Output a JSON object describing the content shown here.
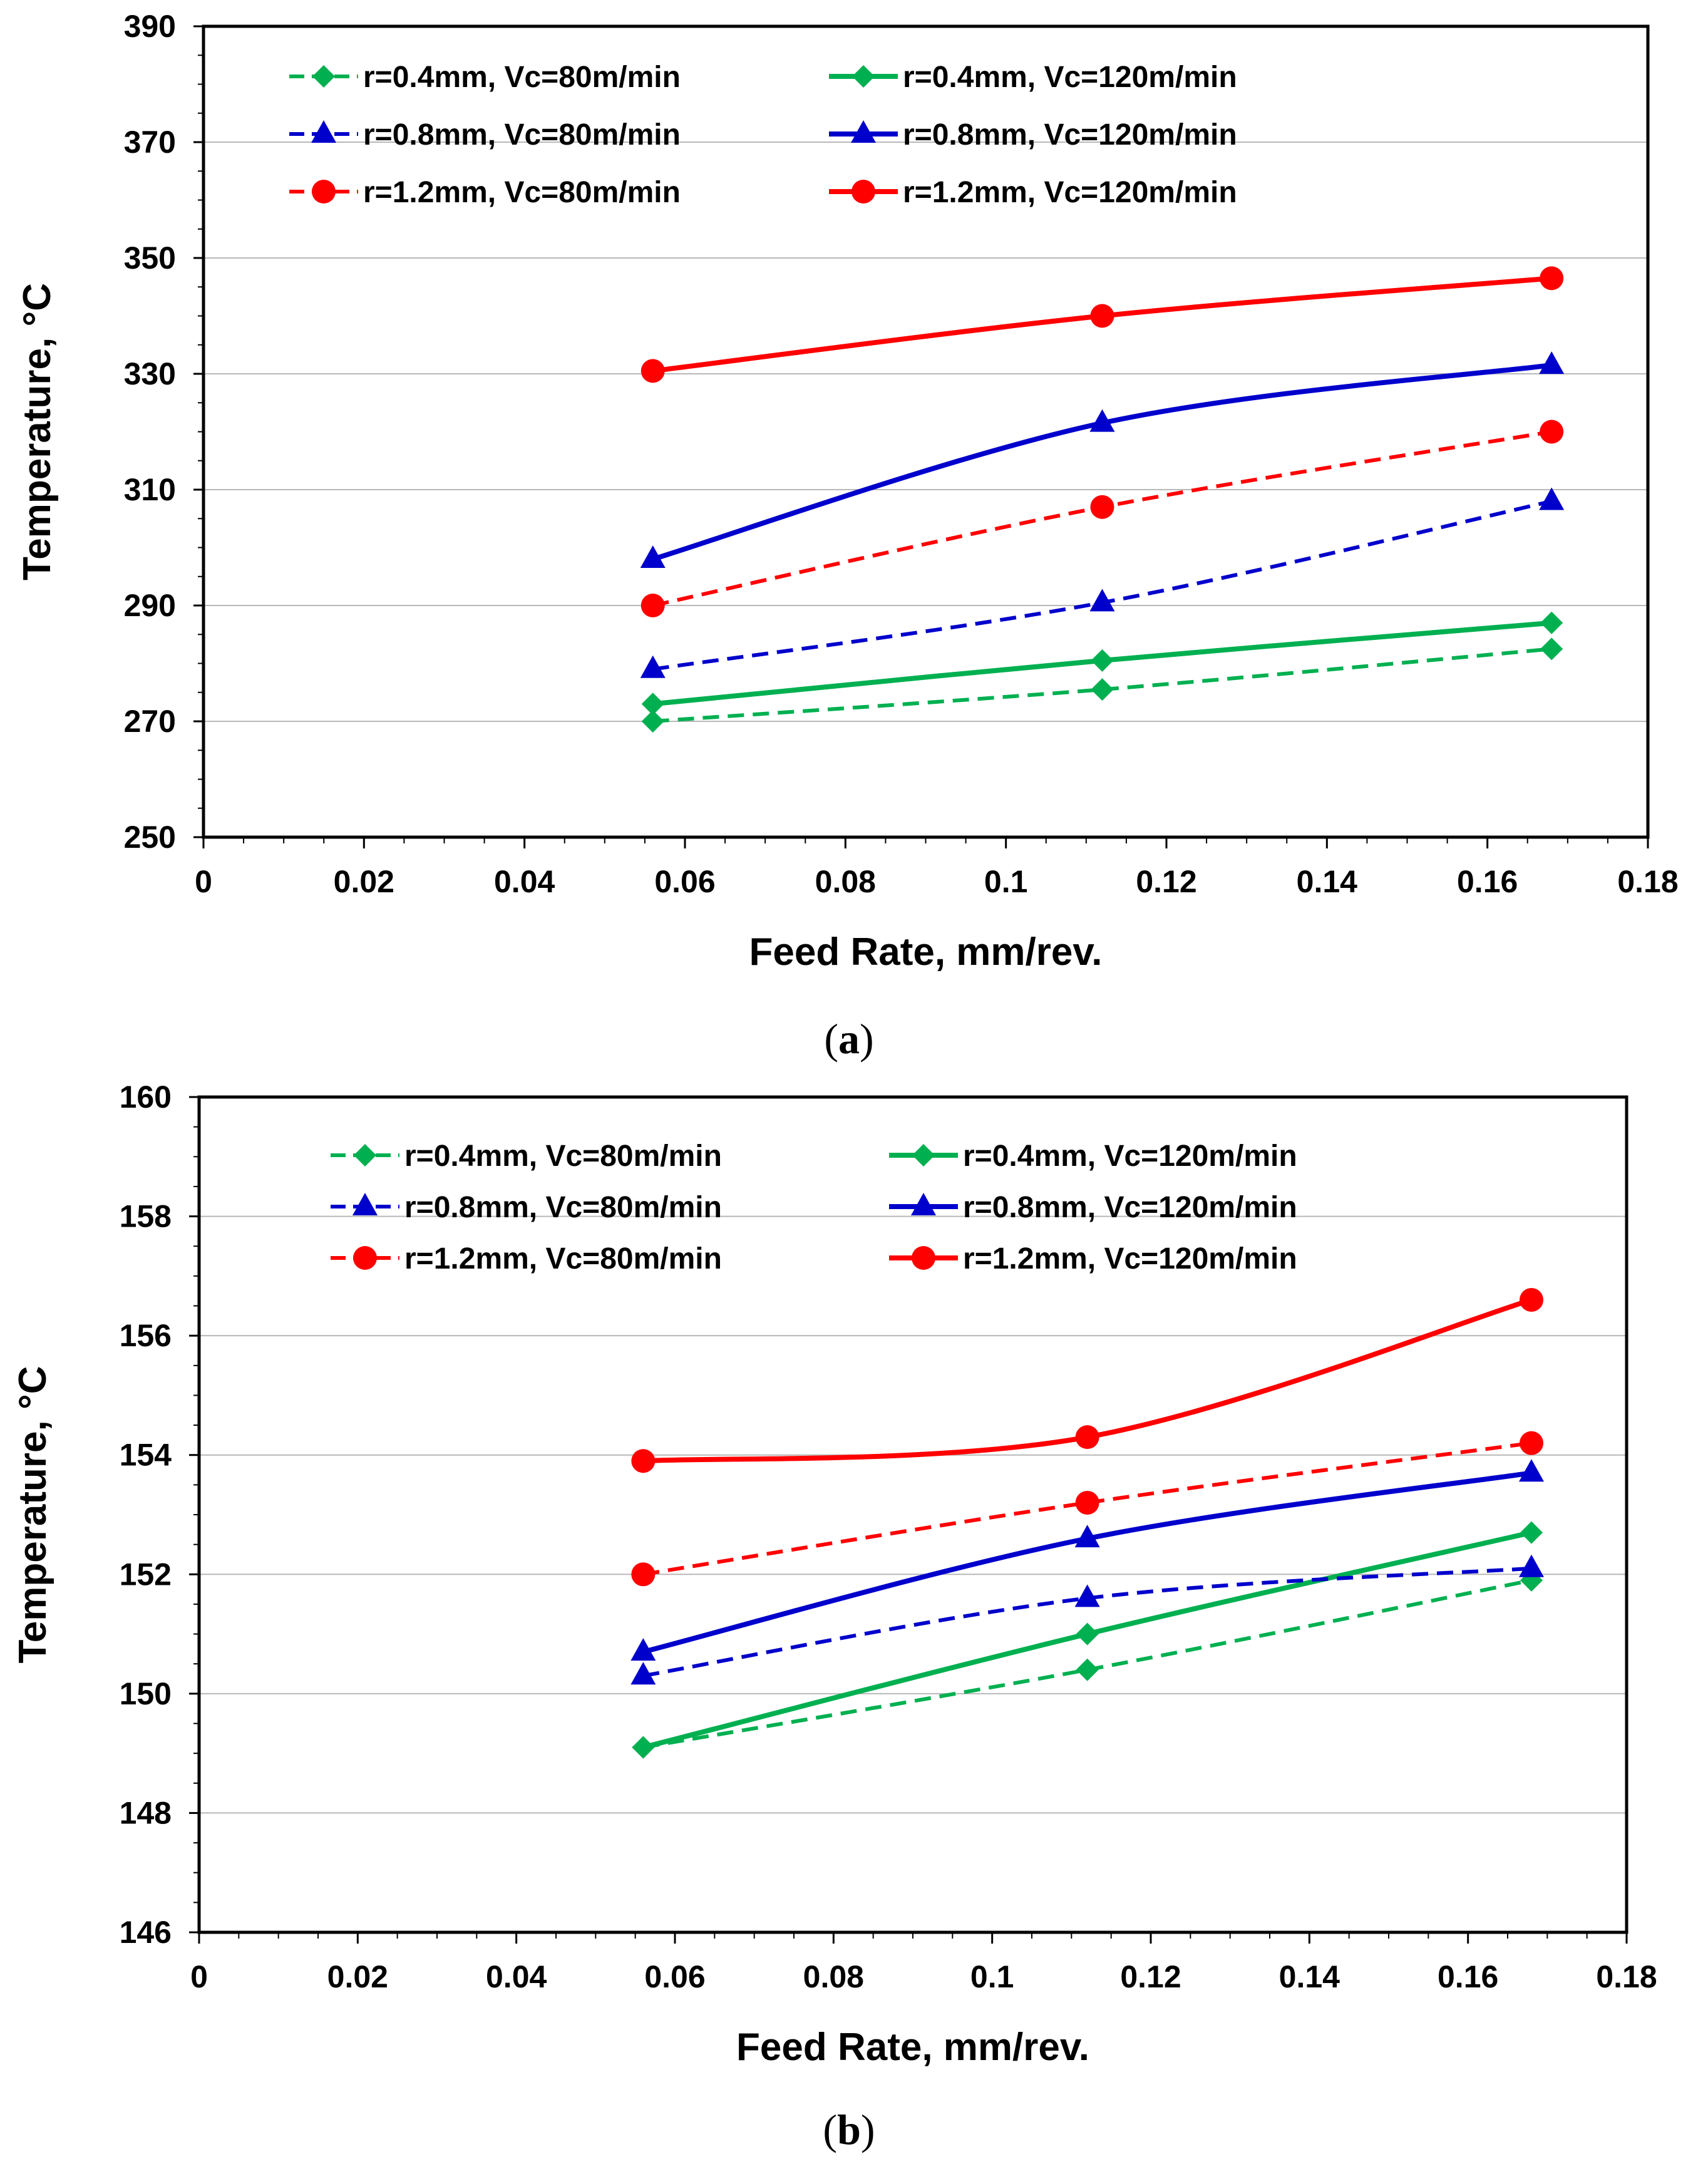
{
  "chart_data": [
    {
      "type": "line",
      "panel_label": "a",
      "xlabel": "Feed Rate, mm/rev.",
      "ylabel": "Temperature, °C",
      "xlim": [
        0,
        0.18
      ],
      "ylim": [
        250,
        390
      ],
      "x_ticks": [
        "0",
        "0.02",
        "0.04",
        "0.06",
        "0.08",
        "0.1",
        "0.12",
        "0.14",
        "0.16",
        "0.18"
      ],
      "y_ticks": [
        "250",
        "270",
        "290",
        "310",
        "330",
        "350",
        "370",
        "390"
      ],
      "x": [
        0.056,
        0.112,
        0.168
      ],
      "grid": "horizontal",
      "legend_position": "top-left",
      "series": [
        {
          "name": "r=0.4mm, Vc=80m/min",
          "values": [
            270,
            275.5,
            282.5
          ],
          "color": "#00b050",
          "marker": "diamond",
          "dashed": true
        },
        {
          "name": "r=0.4mm, Vc=120m/min",
          "values": [
            273,
            280.5,
            287
          ],
          "color": "#00b050",
          "marker": "diamond",
          "dashed": false
        },
        {
          "name": "r=0.8mm, Vc=80m/min",
          "values": [
            279,
            290.5,
            308
          ],
          "color": "#0000cc",
          "marker": "triangle",
          "dashed": true
        },
        {
          "name": "r=0.8mm, Vc=120m/min",
          "values": [
            298,
            321.5,
            331.5
          ],
          "color": "#0000cc",
          "marker": "triangle",
          "dashed": false
        },
        {
          "name": "r=1.2mm, Vc=80m/min",
          "values": [
            290,
            307,
            320
          ],
          "color": "#ff0000",
          "marker": "circle",
          "dashed": true
        },
        {
          "name": "r=1.2mm, Vc=120m/min",
          "values": [
            330.5,
            340,
            346.5
          ],
          "color": "#ff0000",
          "marker": "circle",
          "dashed": false
        }
      ]
    },
    {
      "type": "line",
      "panel_label": "b",
      "xlabel": "Feed Rate, mm/rev.",
      "ylabel": "Temperature, °C",
      "xlim": [
        0,
        0.18
      ],
      "ylim": [
        146,
        160
      ],
      "x_ticks": [
        "0",
        "0.02",
        "0.04",
        "0.06",
        "0.08",
        "0.1",
        "0.12",
        "0.14",
        "0.16",
        "0.18"
      ],
      "y_ticks": [
        "146",
        "148",
        "150",
        "152",
        "154",
        "156",
        "158",
        "160"
      ],
      "x": [
        0.056,
        0.112,
        0.168
      ],
      "grid": "horizontal",
      "legend_position": "top-left",
      "series": [
        {
          "name": "r=0.4mm, Vc=80m/min",
          "values": [
            149.1,
            150.4,
            151.9
          ],
          "color": "#00b050",
          "marker": "diamond",
          "dashed": true
        },
        {
          "name": "r=0.4mm, Vc=120m/min",
          "values": [
            149.1,
            151.0,
            152.7
          ],
          "color": "#00b050",
          "marker": "diamond",
          "dashed": false
        },
        {
          "name": "r=0.8mm, Vc=80m/min",
          "values": [
            150.3,
            151.6,
            152.1
          ],
          "color": "#0000cc",
          "marker": "triangle",
          "dashed": true
        },
        {
          "name": "r=0.8mm, Vc=120m/min",
          "values": [
            150.7,
            152.6,
            153.7
          ],
          "color": "#0000cc",
          "marker": "triangle",
          "dashed": false
        },
        {
          "name": "r=1.2mm, Vc=80m/min",
          "values": [
            152.0,
            153.2,
            154.2
          ],
          "color": "#ff0000",
          "marker": "circle",
          "dashed": true
        },
        {
          "name": "r=1.2mm, Vc=120m/min",
          "values": [
            153.9,
            154.3,
            156.6
          ],
          "color": "#ff0000",
          "marker": "circle",
          "dashed": false
        }
      ]
    }
  ],
  "captions": [
    "a",
    "b"
  ]
}
